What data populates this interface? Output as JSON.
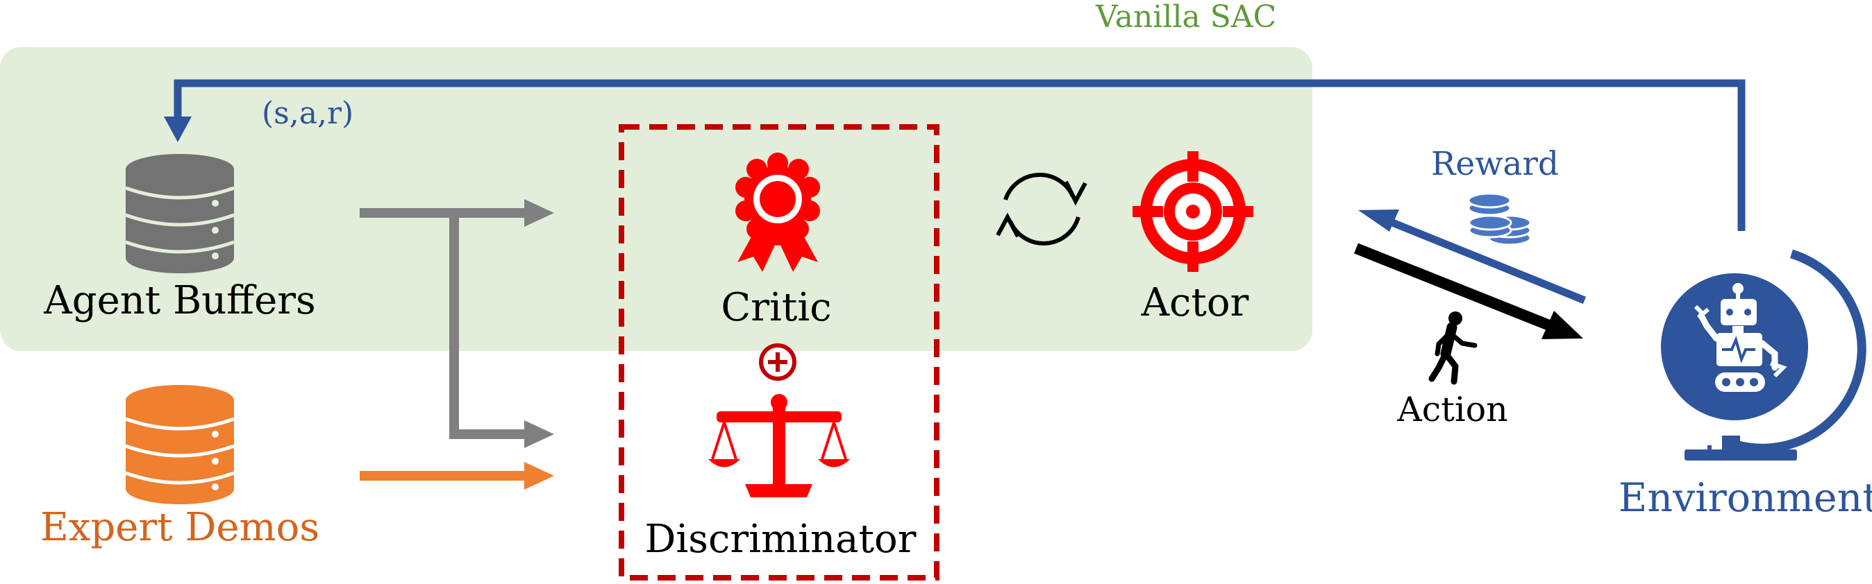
{
  "labels": {
    "vanilla_sac": "Vanilla SAC",
    "sar": "(s,a,r)",
    "agent_buffers": "Agent Buffers",
    "expert_demos": "Expert Demos",
    "critic": "Critic",
    "discriminator": "Discriminator",
    "actor": "Actor",
    "reward": "Reward",
    "action": "Action",
    "environment": "Environment"
  },
  "colors": {
    "sac_region": "#e2eed9",
    "sac_text": "#5f9a3a",
    "blue": "#2e549c",
    "blue_light": "#4b76c4",
    "red": "#ff0000",
    "dark_red": "#c00000",
    "gray_db": "#737373",
    "gray_arrow": "#808080",
    "orange": "#ef8030",
    "orange_text": "#d3641d",
    "black": "#000000"
  },
  "icons": [
    "database-icon",
    "award-ribbon-icon",
    "refresh-cycle-icon",
    "target-crosshair-icon",
    "scale-balance-icon",
    "plus-circle-icon",
    "coins-icon",
    "walking-person-icon",
    "robot-globe-icon"
  ]
}
